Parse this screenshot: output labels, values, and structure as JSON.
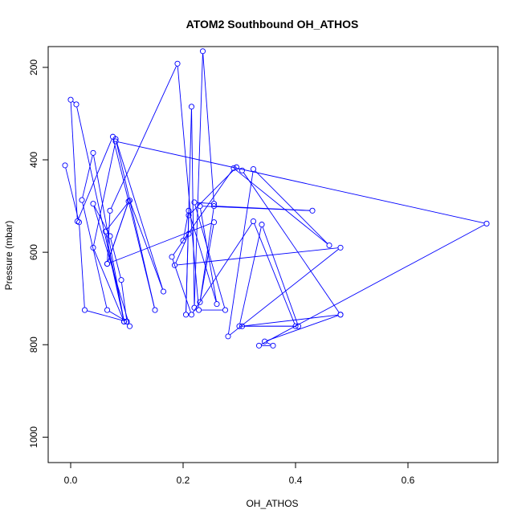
{
  "chart_data": {
    "type": "scatter",
    "title": "ATOM2 Southbound OH_ATHOS",
    "xlabel": "OH_ATHOS",
    "ylabel": "Pressure (mbar)",
    "xlim": [
      -0.04,
      0.76
    ],
    "ylim": [
      1055,
      155
    ],
    "y_reversed": true,
    "xticks": [
      "0.0",
      "0.2",
      "0.4",
      "0.6"
    ],
    "xtick_values": [
      0,
      0.2,
      0.4,
      0.6
    ],
    "yticks": [
      "200",
      "400",
      "600",
      "800",
      "1000"
    ],
    "ytick_values": [
      200,
      400,
      600,
      800,
      1000
    ],
    "color": "#0000ff",
    "marker": "open-circle",
    "connected": true,
    "grid": false,
    "series": [
      {
        "points": [
          [
            -0.01,
            412
          ],
          [
            0.015,
            535
          ],
          [
            0.025,
            725
          ],
          [
            0.1,
            750
          ],
          [
            0.105,
            760
          ],
          [
            0.04,
            495
          ],
          [
            0.07,
            565
          ],
          [
            0.09,
            660
          ],
          [
            0.1,
            750
          ],
          [
            0.065,
            725
          ],
          [
            0.02,
            487
          ],
          [
            0.04,
            385
          ],
          [
            0.095,
            750
          ],
          [
            0.01,
            280
          ],
          [
            0.0,
            270
          ],
          [
            0.012,
            533
          ],
          [
            0.075,
            350
          ],
          [
            0.15,
            725
          ],
          [
            0.08,
            355
          ],
          [
            0.165,
            685
          ],
          [
            0.105,
            488
          ],
          [
            0.062,
            555
          ],
          [
            0.095,
            750
          ],
          [
            0.04,
            590
          ],
          [
            0.08,
            360
          ],
          [
            0.74,
            538
          ],
          [
            0.335,
            802
          ],
          [
            0.36,
            802
          ],
          [
            0.345,
            793
          ],
          [
            0.48,
            735
          ],
          [
            0.305,
            423
          ],
          [
            0.295,
            416
          ],
          [
            0.21,
            520
          ],
          [
            0.205,
            735
          ],
          [
            0.215,
            285
          ],
          [
            0.22,
            720
          ],
          [
            0.235,
            165
          ],
          [
            0.255,
            495
          ],
          [
            0.22,
            492
          ],
          [
            0.275,
            725
          ],
          [
            0.228,
            725
          ],
          [
            0.19,
            192
          ],
          [
            0.07,
            510
          ],
          [
            0.065,
            625
          ],
          [
            0.103,
            490
          ],
          [
            0.065,
            625
          ],
          [
            0.255,
            535
          ],
          [
            0.23,
            708
          ],
          [
            0.255,
            500
          ],
          [
            0.43,
            510
          ],
          [
            0.23,
            500
          ],
          [
            0.26,
            712
          ],
          [
            0.21,
            510
          ],
          [
            0.2,
            575
          ],
          [
            0.21,
            560
          ],
          [
            0.185,
            628
          ],
          [
            0.48,
            590
          ],
          [
            0.28,
            782
          ],
          [
            0.325,
            420
          ],
          [
            0.46,
            585
          ],
          [
            0.29,
            418
          ],
          [
            0.18,
            610
          ],
          [
            0.215,
            735
          ],
          [
            0.325,
            533
          ],
          [
            0.4,
            760
          ],
          [
            0.3,
            760
          ],
          [
            0.34,
            540
          ],
          [
            0.405,
            760
          ],
          [
            0.305,
            760
          ],
          [
            0.48,
            735
          ]
        ]
      }
    ]
  }
}
